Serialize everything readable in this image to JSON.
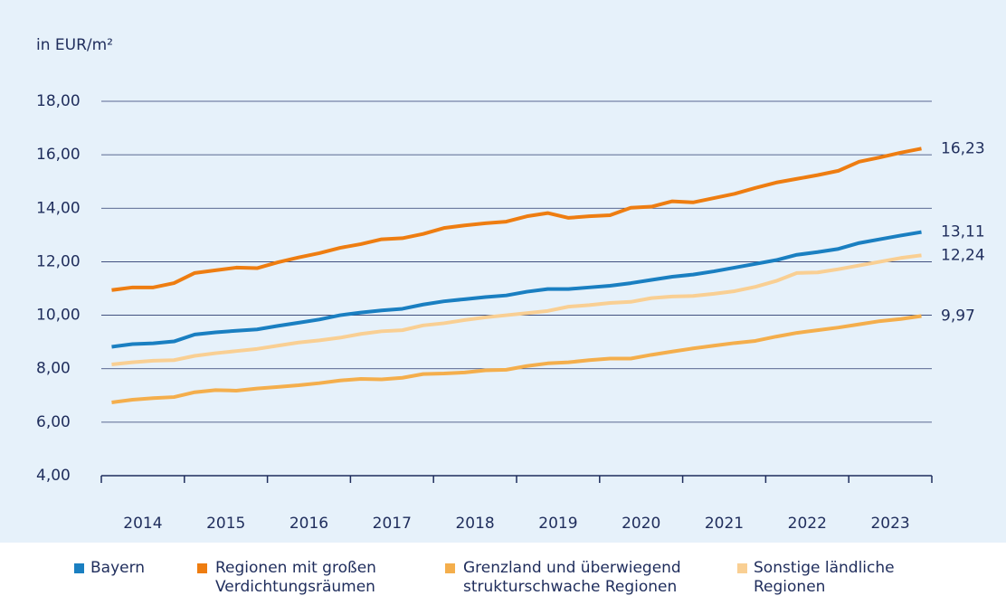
{
  "chart_data": {
    "type": "line",
    "y_label": "in EUR/m²",
    "categories": [
      "2014",
      null,
      null,
      null,
      "2015",
      null,
      null,
      null,
      "2016",
      null,
      null,
      null,
      "2017",
      null,
      null,
      null,
      "2018",
      null,
      null,
      null,
      "2019",
      null,
      null,
      null,
      "2020",
      null,
      null,
      null,
      "2021",
      null,
      null,
      null,
      "2022",
      null,
      null,
      null,
      "2023",
      null,
      null,
      null
    ],
    "ylim": [
      4,
      18
    ],
    "yticks": [
      {
        "value": 4,
        "label": "4,00"
      },
      {
        "value": 6,
        "label": "6,00"
      },
      {
        "value": 8,
        "label": "8,00"
      },
      {
        "value": 10,
        "label": "10,00"
      },
      {
        "value": 12,
        "label": "12,00"
      },
      {
        "value": 14,
        "label": "14,00"
      },
      {
        "value": 16,
        "label": "16,00"
      },
      {
        "value": 18,
        "label": "18,00"
      }
    ],
    "grid": true,
    "legend": "bottom",
    "series": [
      {
        "name": "Bayern",
        "color": "#1a7fc1",
        "values": [
          8.82,
          8.92,
          8.95,
          9.02,
          9.28,
          9.36,
          9.42,
          9.47,
          9.6,
          9.72,
          9.84,
          10.0,
          10.1,
          10.18,
          10.24,
          10.4,
          10.52,
          10.6,
          10.68,
          10.74,
          10.88,
          10.98,
          10.98,
          11.04,
          11.1,
          11.2,
          11.32,
          11.44,
          11.52,
          11.64,
          11.78,
          11.92,
          12.06,
          12.26,
          12.36,
          12.48,
          12.7,
          12.84,
          12.98,
          13.11
        ],
        "value_labels": [
          null,
          null,
          null,
          null,
          null,
          null,
          null,
          null,
          null,
          null,
          null,
          null,
          null,
          null,
          null,
          null,
          null,
          null,
          null,
          null,
          null,
          null,
          null,
          null,
          null,
          null,
          null,
          null,
          null,
          null,
          null,
          null,
          null,
          null,
          null,
          null,
          null,
          null,
          null,
          "13,11"
        ]
      },
      {
        "name": "Regionen mit großen Verdichtungsräumen",
        "color": "#ee7d11",
        "values": [
          10.94,
          11.04,
          11.04,
          11.2,
          11.58,
          11.68,
          11.78,
          11.76,
          11.98,
          12.16,
          12.32,
          12.52,
          12.66,
          12.84,
          12.88,
          13.04,
          13.26,
          13.36,
          13.44,
          13.5,
          13.7,
          13.82,
          13.64,
          13.7,
          13.74,
          14.02,
          14.06,
          14.26,
          14.22,
          14.38,
          14.54,
          14.76,
          14.96,
          15.1,
          15.24,
          15.4,
          15.74,
          15.9,
          16.08,
          16.23
        ],
        "value_labels": [
          null,
          null,
          null,
          null,
          null,
          null,
          null,
          null,
          null,
          null,
          null,
          null,
          null,
          null,
          null,
          null,
          null,
          null,
          null,
          null,
          null,
          null,
          null,
          null,
          null,
          null,
          null,
          null,
          null,
          null,
          null,
          null,
          null,
          null,
          null,
          null,
          null,
          null,
          null,
          "16,23"
        ]
      },
      {
        "name": "Grenzland und überwiegend strukturschwache Regionen",
        "color": "#f4ae4c",
        "values": [
          6.74,
          6.84,
          6.9,
          6.94,
          7.12,
          7.2,
          7.18,
          7.26,
          7.32,
          7.38,
          7.46,
          7.56,
          7.62,
          7.6,
          7.66,
          7.8,
          7.82,
          7.86,
          7.94,
          7.96,
          8.1,
          8.2,
          8.24,
          8.32,
          8.38,
          8.38,
          8.52,
          8.64,
          8.76,
          8.86,
          8.96,
          9.04,
          9.2,
          9.34,
          9.44,
          9.54,
          9.66,
          9.78,
          9.86,
          9.97
        ],
        "value_labels": [
          null,
          null,
          null,
          null,
          null,
          null,
          null,
          null,
          null,
          null,
          null,
          null,
          null,
          null,
          null,
          null,
          null,
          null,
          null,
          null,
          null,
          null,
          null,
          null,
          null,
          null,
          null,
          null,
          null,
          null,
          null,
          null,
          null,
          null,
          null,
          null,
          null,
          null,
          null,
          "9,97"
        ]
      },
      {
        "name": "Sonstige ländliche Regionen",
        "color": "#f9cf93",
        "values": [
          8.16,
          8.24,
          8.3,
          8.32,
          8.48,
          8.58,
          8.66,
          8.74,
          8.86,
          8.98,
          9.06,
          9.16,
          9.3,
          9.4,
          9.44,
          9.62,
          9.7,
          9.82,
          9.92,
          10.0,
          10.08,
          10.16,
          10.32,
          10.38,
          10.46,
          10.5,
          10.64,
          10.7,
          10.72,
          10.8,
          10.9,
          11.06,
          11.28,
          11.58,
          11.6,
          11.72,
          11.86,
          12.0,
          12.14,
          12.24
        ],
        "value_labels": [
          null,
          null,
          null,
          null,
          null,
          null,
          null,
          null,
          null,
          null,
          null,
          null,
          null,
          null,
          null,
          null,
          null,
          null,
          null,
          null,
          null,
          null,
          null,
          null,
          null,
          null,
          null,
          null,
          null,
          null,
          null,
          null,
          null,
          null,
          null,
          null,
          null,
          null,
          null,
          "12,24"
        ]
      }
    ]
  }
}
